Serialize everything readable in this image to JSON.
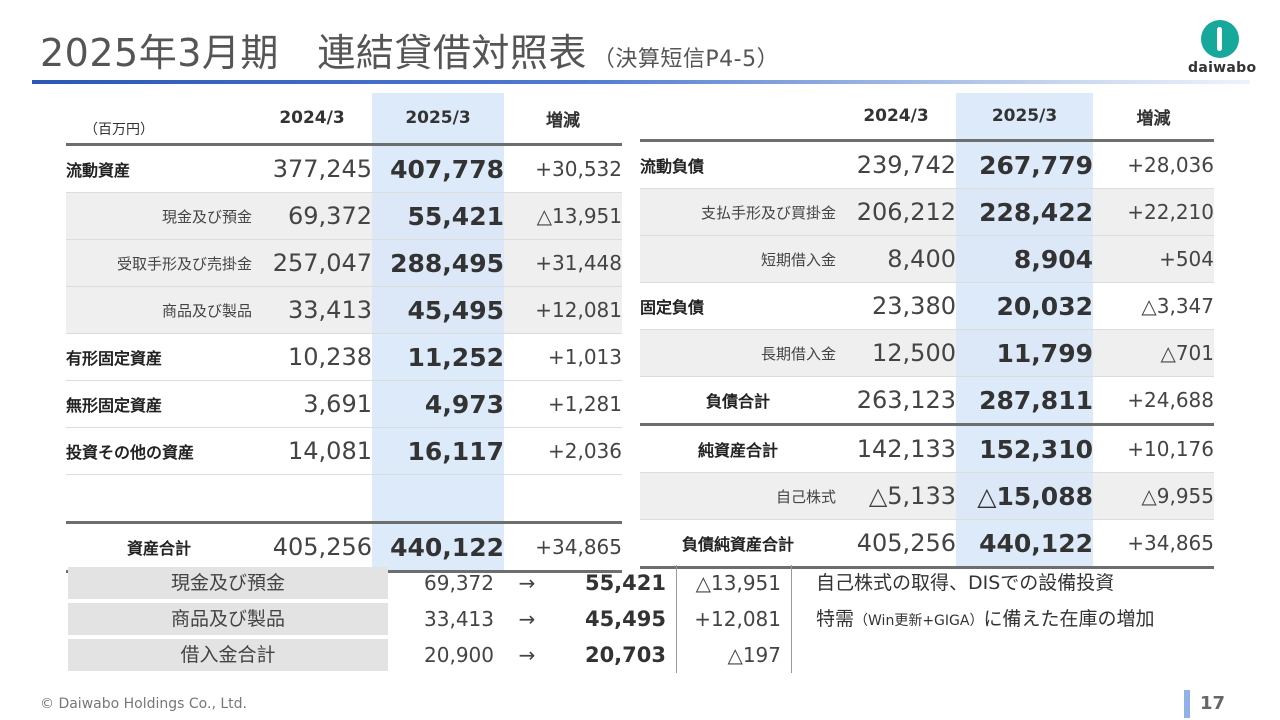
{
  "header": {
    "title": "2025年3月期　連結貸借対照表",
    "subtitle": "（決算短信P4-5）",
    "logo_text": "daiwabo"
  },
  "left_table": {
    "unit": "（百万円）",
    "columns": [
      "2024/3",
      "2025/3",
      "増減"
    ],
    "rows": [
      {
        "label": "流動資産",
        "v2024": "377,245",
        "v2025": "407,778",
        "diff": "+30,532"
      },
      {
        "label": "現金及び預金",
        "v2024": "69,372",
        "v2025": "55,421",
        "diff": "△13,951"
      },
      {
        "label": "受取手形及び売掛金",
        "v2024": "257,047",
        "v2025": "288,495",
        "diff": "+31,448"
      },
      {
        "label": "商品及び製品",
        "v2024": "33,413",
        "v2025": "45,495",
        "diff": "+12,081"
      },
      {
        "label": "有形固定資産",
        "v2024": "10,238",
        "v2025": "11,252",
        "diff": "+1,013"
      },
      {
        "label": "無形固定資産",
        "v2024": "3,691",
        "v2025": "4,973",
        "diff": "+1,281"
      },
      {
        "label": "投資その他の資産",
        "v2024": "14,081",
        "v2025": "16,117",
        "diff": "+2,036"
      },
      {
        "label": "",
        "v2024": "",
        "v2025": "",
        "diff": ""
      },
      {
        "label": "資産合計",
        "v2024": "405,256",
        "v2025": "440,122",
        "diff": "+34,865"
      }
    ]
  },
  "right_table": {
    "columns": [
      "2024/3",
      "2025/3",
      "増減"
    ],
    "rows": [
      {
        "label": "流動負債",
        "v2024": "239,742",
        "v2025": "267,779",
        "diff": "+28,036"
      },
      {
        "label": "支払手形及び買掛金",
        "v2024": "206,212",
        "v2025": "228,422",
        "diff": "+22,210"
      },
      {
        "label": "短期借入金",
        "v2024": "8,400",
        "v2025": "8,904",
        "diff": "+504"
      },
      {
        "label": "固定負債",
        "v2024": "23,380",
        "v2025": "20,032",
        "diff": "△3,347"
      },
      {
        "label": "長期借入金",
        "v2024": "12,500",
        "v2025": "11,799",
        "diff": "△701"
      },
      {
        "label": "負債合計",
        "v2024": "263,123",
        "v2025": "287,811",
        "diff": "+24,688"
      },
      {
        "label": "純資産合計",
        "v2024": "142,133",
        "v2025": "152,310",
        "diff": "+10,176"
      },
      {
        "label": "自己株式",
        "v2024": "△5,133",
        "v2025": "△15,088",
        "diff": "△9,955"
      },
      {
        "label": "負債純資産合計",
        "v2024": "405,256",
        "v2025": "440,122",
        "diff": "+34,865"
      }
    ]
  },
  "summary": [
    {
      "label": "現金及び預金",
      "from": "69,372",
      "arrow": "→",
      "to": "55,421",
      "diff": "△13,951",
      "note": "自己株式の取得、DISでの設備投資",
      "note_small": "",
      "note_tail": ""
    },
    {
      "label": "商品及び製品",
      "from": "33,413",
      "arrow": "→",
      "to": "45,495",
      "diff": "+12,081",
      "note": "特需",
      "note_small": "（Win更新+GIGA）",
      "note_tail": "に備えた在庫の増加"
    },
    {
      "label": "借入金合計",
      "from": "20,900",
      "arrow": "→",
      "to": "20,703",
      "diff": "△197",
      "note": "",
      "note_small": "",
      "note_tail": ""
    }
  ],
  "footer": {
    "copyright": "© Daiwabo Holdings Co., Ltd.",
    "page": "17"
  }
}
